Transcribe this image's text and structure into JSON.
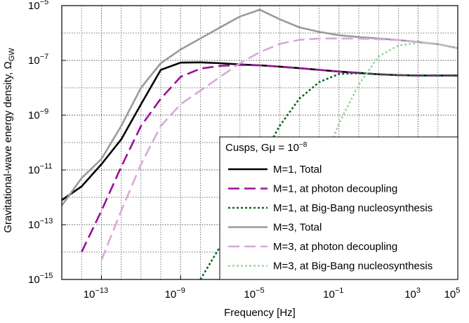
{
  "chart_data": {
    "type": "line",
    "log_x": true,
    "log_y": true,
    "grid": true,
    "minor_grid": true,
    "legend_position": "lower right",
    "xlabel": "Frequency [Hz]",
    "ylabel": {
      "text": "Gravitational-wave energy density, Ω",
      "sub": "GW"
    },
    "legend_title": {
      "text": "Cusps, Gμ = 10",
      "sup": "−8"
    },
    "xlim": [
      1e-15,
      100000.0
    ],
    "ylim": [
      1e-15,
      1e-05
    ],
    "xticks": [
      {
        "value": 1e-13,
        "label": "10−13"
      },
      {
        "value": 1e-09,
        "label": "10−9"
      },
      {
        "value": 1e-05,
        "label": "10−5"
      },
      {
        "value": 0.1,
        "label": "10−1"
      },
      {
        "value": 1000,
        "label": "103"
      },
      {
        "value": 100000,
        "label": "105"
      }
    ],
    "yticks": [
      {
        "value": 1e-15,
        "label": "10−15"
      },
      {
        "value": 1e-13,
        "label": "10−13"
      },
      {
        "value": 1e-11,
        "label": "10−11"
      },
      {
        "value": 1e-09,
        "label": "10−9"
      },
      {
        "value": 1e-07,
        "label": "10−7"
      },
      {
        "value": 1e-05,
        "label": "10−5"
      }
    ],
    "x": [
      1e-15,
      1e-14,
      1e-13,
      1e-12,
      1e-11,
      1e-10,
      1e-09,
      1e-08,
      1e-07,
      1e-06,
      1e-05,
      0.0001,
      0.001,
      0.01,
      0.1,
      1,
      10,
      100,
      1000,
      10000,
      100000
    ],
    "series": [
      {
        "name": "M=1, Total",
        "color": "#000000",
        "linestyle": "solid",
        "values": [
          7.9e-13,
          2.5e-12,
          1.6e-11,
          1.3e-10,
          2.5e-09,
          4.5e-08,
          8.3e-08,
          8.5e-08,
          7.9e-08,
          7.1e-08,
          6.6e-08,
          5.9e-08,
          5.2e-08,
          4.5e-08,
          3.9e-08,
          3.5e-08,
          3.1e-08,
          2.9e-08,
          2.8e-08,
          2.8e-08,
          2.8e-08
        ]
      },
      {
        "name": "M=1, at photon decoupling",
        "color": "#9b109b",
        "linestyle": "dashed",
        "values": [
          null,
          1e-14,
          3.2e-13,
          1.3e-11,
          4e-10,
          4e-09,
          2.5e-08,
          5e-08,
          6.3e-08,
          6.8e-08,
          6.6e-08,
          5.9e-08,
          5.2e-08,
          4.5e-08,
          3.9e-08,
          3.5e-08,
          3.1e-08,
          2.9e-08,
          2.8e-08,
          2.8e-08,
          2.8e-08
        ]
      },
      {
        "name": "M=1, at Big-Bang nucleosynthesis",
        "color": "#0a6b1e",
        "linestyle": "dotted",
        "values": [
          null,
          null,
          null,
          null,
          null,
          null,
          null,
          1e-15,
          1.6e-14,
          6.3e-13,
          2e-11,
          4e-10,
          4e-09,
          1.6e-08,
          3.2e-08,
          3.4e-08,
          3.1e-08,
          2.9e-08,
          2.8e-08,
          2.8e-08,
          2.8e-08
        ]
      },
      {
        "name": "M=3, Total",
        "color": "#9a9a9a",
        "linestyle": "solid",
        "values": [
          5e-13,
          5e-12,
          2.5e-11,
          4e-10,
          1e-08,
          7.9e-08,
          2.5e-07,
          6.3e-07,
          1.6e-06,
          4e-06,
          7.1e-06,
          3.2e-06,
          1.6e-06,
          1.1e-06,
          8.3e-07,
          7.1e-07,
          6.3e-07,
          5.5e-07,
          4.7e-07,
          3.9e-07,
          2.8e-07
        ]
      },
      {
        "name": "M=3, at photon decoupling",
        "color": "#d8a8d8",
        "linestyle": "dashed",
        "values": [
          null,
          null,
          5e-15,
          3.2e-13,
          1.6e-11,
          4e-10,
          2.5e-09,
          7.9e-09,
          2.5e-08,
          7.9e-08,
          2e-07,
          4e-07,
          5.6e-07,
          6.3e-07,
          6.3e-07,
          6.2e-07,
          6e-07,
          5.5e-07,
          4.7e-07,
          3.9e-07,
          2.8e-07
        ]
      },
      {
        "name": "M=3, at Big-Bang nucleosynthesis",
        "color": "#9fd89f",
        "linestyle": "dotted",
        "values": [
          null,
          null,
          null,
          null,
          null,
          null,
          null,
          null,
          null,
          null,
          null,
          1e-15,
          1e-13,
          6.3e-12,
          5e-10,
          1.3e-08,
          1.4e-07,
          3.5e-07,
          4.4e-07,
          3.9e-07,
          2.8e-07
        ]
      }
    ]
  }
}
